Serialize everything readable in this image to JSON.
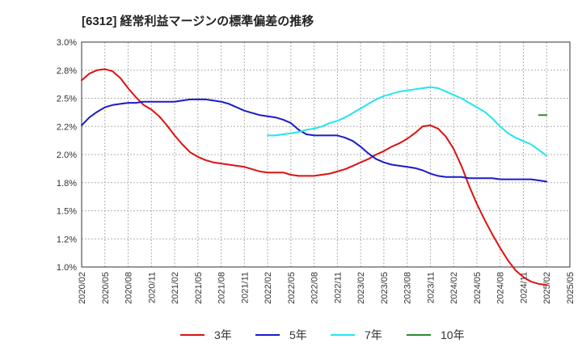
{
  "chart_data": {
    "type": "line",
    "title": "[6312]  経常利益マージンの標準偏差の推移",
    "xlabel": "",
    "ylabel": "",
    "ylim": [
      0.01,
      0.03
    ],
    "y_ticks": [
      "3.0%",
      "2.8%",
      "2.5%",
      "2.2%",
      "2.0%",
      "1.8%",
      "1.5%",
      "1.2%",
      "1.0%"
    ],
    "y_tick_values": [
      0.03,
      0.0275,
      0.025,
      0.0225,
      0.02,
      0.0175,
      0.015,
      0.0125,
      0.01
    ],
    "x_ticks": [
      "2020/02",
      "2020/05",
      "2020/08",
      "2020/11",
      "2021/02",
      "2021/05",
      "2021/08",
      "2021/11",
      "2022/02",
      "2022/05",
      "2022/08",
      "2022/11",
      "2023/02",
      "2023/05",
      "2023/08",
      "2023/11",
      "2024/02",
      "2024/05",
      "2024/08",
      "2024/11",
      "2025/02",
      "2025/05"
    ],
    "grid": true,
    "legend_position": "bottom",
    "series": [
      {
        "name": "3年",
        "color": "#dd1111",
        "x": [
          "2020/02",
          "2020/03",
          "2020/04",
          "2020/05",
          "2020/06",
          "2020/07",
          "2020/08",
          "2020/09",
          "2020/10",
          "2020/11",
          "2020/12",
          "2021/01",
          "2021/02",
          "2021/03",
          "2021/04",
          "2021/05",
          "2021/06",
          "2021/07",
          "2021/08",
          "2021/09",
          "2021/10",
          "2021/11",
          "2021/12",
          "2022/01",
          "2022/02",
          "2022/03",
          "2022/04",
          "2022/05",
          "2022/06",
          "2022/07",
          "2022/08",
          "2022/09",
          "2022/10",
          "2022/11",
          "2022/12",
          "2023/01",
          "2023/02",
          "2023/03",
          "2023/04",
          "2023/05",
          "2023/06",
          "2023/07",
          "2023/08",
          "2023/09",
          "2023/10",
          "2023/11",
          "2023/12",
          "2024/01",
          "2024/02",
          "2024/03",
          "2024/04",
          "2024/05",
          "2024/06",
          "2024/07",
          "2024/08",
          "2024/09",
          "2024/10",
          "2024/11",
          "2024/12",
          "2025/01",
          "2025/02"
        ],
        "values": [
          0.0266,
          0.0272,
          0.0275,
          0.0276,
          0.0274,
          0.0268,
          0.0259,
          0.0251,
          0.0244,
          0.024,
          0.0234,
          0.0226,
          0.0217,
          0.0209,
          0.0202,
          0.0198,
          0.0195,
          0.0193,
          0.0192,
          0.0191,
          0.019,
          0.0189,
          0.0187,
          0.0185,
          0.0184,
          0.0184,
          0.0184,
          0.0182,
          0.0181,
          0.0181,
          0.0181,
          0.0182,
          0.0183,
          0.0185,
          0.0187,
          0.019,
          0.0193,
          0.0196,
          0.02,
          0.0203,
          0.0207,
          0.021,
          0.0214,
          0.0219,
          0.0225,
          0.0226,
          0.0223,
          0.0216,
          0.0205,
          0.019,
          0.0172,
          0.0156,
          0.0142,
          0.0129,
          0.0117,
          0.0106,
          0.0097,
          0.0091,
          0.0087,
          0.0085,
          0.0084
        ]
      },
      {
        "name": "5年",
        "color": "#1a1acc",
        "x": [
          "2020/02",
          "2020/03",
          "2020/04",
          "2020/05",
          "2020/06",
          "2020/07",
          "2020/08",
          "2020/09",
          "2020/10",
          "2020/11",
          "2020/12",
          "2021/01",
          "2021/02",
          "2021/03",
          "2021/04",
          "2021/05",
          "2021/06",
          "2021/07",
          "2021/08",
          "2021/09",
          "2021/10",
          "2021/11",
          "2021/12",
          "2022/01",
          "2022/02",
          "2022/03",
          "2022/04",
          "2022/05",
          "2022/06",
          "2022/07",
          "2022/08",
          "2022/09",
          "2022/10",
          "2022/11",
          "2022/12",
          "2023/01",
          "2023/02",
          "2023/03",
          "2023/04",
          "2023/05",
          "2023/06",
          "2023/07",
          "2023/08",
          "2023/09",
          "2023/10",
          "2023/11",
          "2023/12",
          "2024/01",
          "2024/02",
          "2024/03",
          "2024/04",
          "2024/05",
          "2024/06",
          "2024/07",
          "2024/08",
          "2024/09",
          "2024/10",
          "2024/11",
          "2024/12",
          "2025/01",
          "2025/02"
        ],
        "values": [
          0.0226,
          0.0233,
          0.0238,
          0.0242,
          0.0244,
          0.0245,
          0.0246,
          0.0246,
          0.0247,
          0.0247,
          0.0247,
          0.0247,
          0.0247,
          0.0248,
          0.0249,
          0.0249,
          0.0249,
          0.0248,
          0.0247,
          0.0245,
          0.0242,
          0.0239,
          0.0237,
          0.0235,
          0.0234,
          0.0233,
          0.0231,
          0.0228,
          0.0222,
          0.0218,
          0.0217,
          0.0217,
          0.0217,
          0.0217,
          0.0215,
          0.0212,
          0.0207,
          0.0201,
          0.0196,
          0.0193,
          0.0191,
          0.019,
          0.0189,
          0.0188,
          0.0186,
          0.0183,
          0.0181,
          0.018,
          0.018,
          0.018,
          0.0179,
          0.0179,
          0.0179,
          0.0179,
          0.0178,
          0.0178,
          0.0178,
          0.0178,
          0.0178,
          0.0177,
          0.0176
        ]
      },
      {
        "name": "7年",
        "color": "#22e6f0",
        "x": [
          "2022/02",
          "2022/03",
          "2022/04",
          "2022/05",
          "2022/06",
          "2022/07",
          "2022/08",
          "2022/09",
          "2022/10",
          "2022/11",
          "2022/12",
          "2023/01",
          "2023/02",
          "2023/03",
          "2023/04",
          "2023/05",
          "2023/06",
          "2023/07",
          "2023/08",
          "2023/09",
          "2023/10",
          "2023/11",
          "2023/12",
          "2024/01",
          "2024/02",
          "2024/03",
          "2024/04",
          "2024/05",
          "2024/06",
          "2024/07",
          "2024/08",
          "2024/09",
          "2024/10",
          "2024/11",
          "2024/12",
          "2025/01",
          "2025/02"
        ],
        "values": [
          0.0217,
          0.0217,
          0.0218,
          0.0219,
          0.022,
          0.0222,
          0.0223,
          0.0225,
          0.0228,
          0.023,
          0.0233,
          0.0237,
          0.0241,
          0.0245,
          0.0249,
          0.0252,
          0.0254,
          0.0256,
          0.0257,
          0.0258,
          0.0259,
          0.026,
          0.0259,
          0.0256,
          0.0253,
          0.025,
          0.0246,
          0.0242,
          0.0238,
          0.0232,
          0.0225,
          0.0219,
          0.0215,
          0.0212,
          0.0209,
          0.0204,
          0.0199
        ]
      },
      {
        "name": "10年",
        "color": "#2e8b2e",
        "x": [
          "2025/01",
          "2025/02"
        ],
        "values": [
          0.0235,
          0.0235
        ]
      }
    ]
  }
}
